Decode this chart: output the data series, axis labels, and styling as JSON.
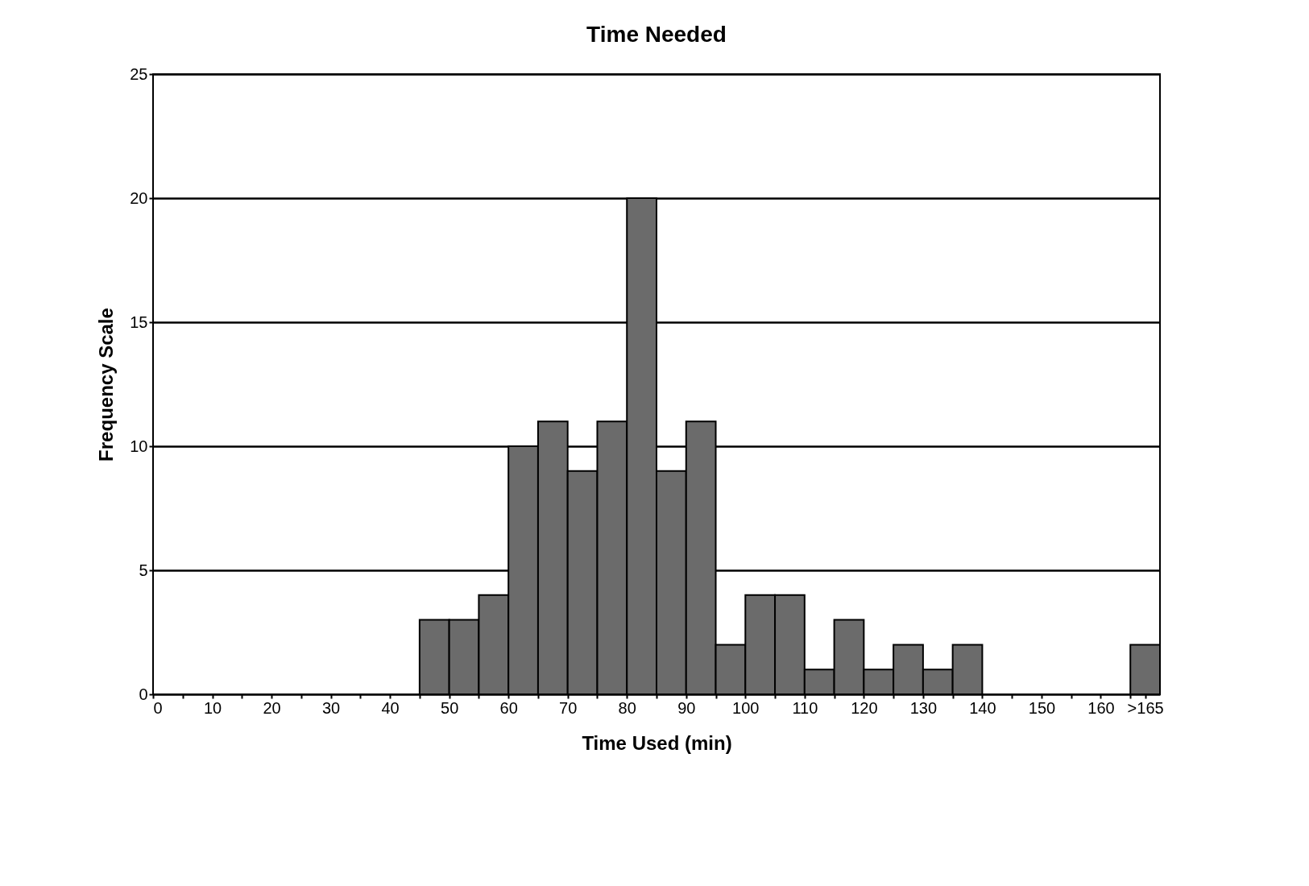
{
  "chart_data": {
    "type": "histogram",
    "title": "Time Needed",
    "xlabel": "Time Used (min)",
    "ylabel": "Frequency Scale",
    "bins": [
      0,
      5,
      10,
      15,
      20,
      25,
      30,
      35,
      40,
      45,
      50,
      55,
      60,
      65,
      70,
      75,
      80,
      85,
      90,
      95,
      100,
      105,
      110,
      115,
      120,
      125,
      130,
      135,
      140,
      145,
      150,
      155,
      160,
      165,
      170
    ],
    "values": [
      0,
      0,
      0,
      0,
      0,
      0,
      0,
      0,
      0,
      3,
      3,
      4,
      10,
      11,
      9,
      11,
      20,
      9,
      11,
      2,
      4,
      4,
      1,
      3,
      1,
      2,
      1,
      2,
      0,
      0,
      0,
      0,
      0,
      2
    ],
    "color": "#6b6b6b",
    "xlim": [
      0,
      170
    ],
    "xticks": [
      0,
      {
        "value": 5,
        "label": null
      },
      10,
      {
        "value": 15,
        "label": null
      },
      20,
      {
        "value": 25,
        "label": null
      },
      30,
      {
        "value": 35,
        "label": null
      },
      40,
      {
        "value": 45,
        "label": null
      },
      50,
      {
        "value": 55,
        "label": null
      },
      60,
      {
        "value": 65,
        "label": null
      },
      70,
      {
        "value": 75,
        "label": null
      },
      80,
      {
        "value": 85,
        "label": null
      },
      90,
      {
        "value": 95,
        "label": null
      },
      100,
      {
        "value": 105,
        "label": null
      },
      110,
      {
        "value": 115,
        "label": null
      },
      120,
      {
        "value": 125,
        "label": null
      },
      130,
      {
        "value": 135,
        "label": null
      },
      140,
      {
        "value": 145,
        "label": null
      },
      150,
      {
        "value": 155,
        "label": null
      },
      160,
      {
        "value": 165,
        "label": null
      },
      {
        "value": 167.5,
        "label": ">165"
      }
    ],
    "ylim": [
      0,
      25
    ],
    "yticks": [
      0,
      5,
      10,
      15,
      20,
      25
    ],
    "grid": "y"
  }
}
